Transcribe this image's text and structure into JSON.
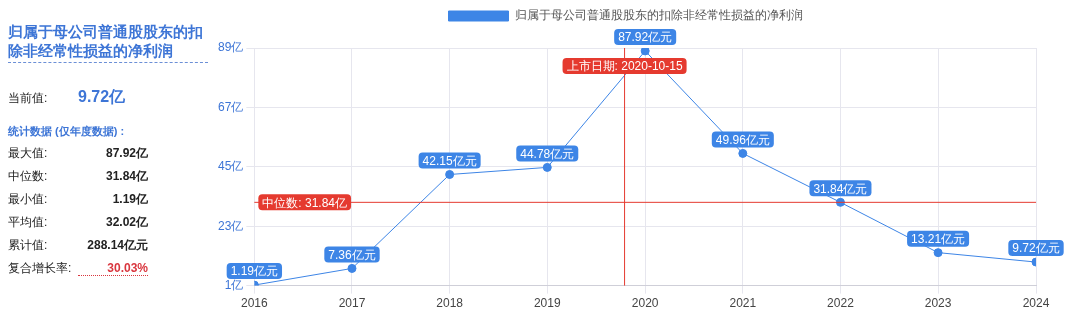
{
  "chart_data": [
    {
      "type": "other",
      "title": "归属于母公司普通股股东的扣除非经常性损益的净利润",
      "subtitle": "统计数据 (仅年度数据) :",
      "annotations": [
        "当前值: 9.72亿",
        "最大值: 87.92亿",
        "中位数: 31.84亿",
        "最小值: 1.19亿",
        "平均值: 32.02亿",
        "累计值: 288.14亿元",
        "复合增长率: 30.03%"
      ]
    },
    {
      "type": "line",
      "x": [
        "2016-12-31",
        "2017-12-31",
        "2018-12-31",
        "2019-12-31",
        "2020-12-31",
        "2021-12-31",
        "2022-12-31",
        "2023-12-31",
        "2024-12-31"
      ],
      "series": [
        {
          "name": "归属于母公司普通股股东的扣除非经常性损益的净利润",
          "color": "#3d85e6",
          "values": [
            1.19,
            7.36,
            42.15,
            44.78,
            87.92,
            49.96,
            31.84,
            13.21,
            9.72
          ],
          "value_labels": [
            "1.19亿元",
            "7.36亿元",
            "42.15亿元",
            "44.78亿元",
            "87.92亿元",
            "49.96亿元",
            "31.84亿元",
            "13.21亿元",
            "9.72亿元"
          ]
        }
      ],
      "xlim": [
        "2016-12-31",
        "2024-12-31"
      ],
      "xticks": [
        {
          "value": "2016-12-31",
          "label": "2016"
        },
        {
          "value": "2017-12-31",
          "label": "2017"
        },
        {
          "value": "2018-12-31",
          "label": "2018"
        },
        {
          "value": "2019-12-31",
          "label": "2019"
        },
        {
          "value": "2020-12-31",
          "label": "2020"
        },
        {
          "value": "2021-12-31",
          "label": "2021"
        },
        {
          "value": "2022-12-31",
          "label": "2022"
        },
        {
          "value": "2023-12-31",
          "label": "2023"
        },
        {
          "value": "2024-12-31",
          "label": "2024"
        }
      ],
      "ylim": [
        1,
        89
      ],
      "yticks": [
        {
          "value": 1,
          "label": "1亿"
        },
        {
          "value": 23,
          "label": "23亿"
        },
        {
          "value": 45,
          "label": "45亿"
        },
        {
          "value": 67,
          "label": "67亿"
        },
        {
          "value": 89,
          "label": "89亿"
        }
      ],
      "ref_lines": [
        {
          "axis": "y",
          "value": 31.84,
          "label": "中位数: 31.84亿",
          "color": "#e53a2f"
        },
        {
          "axis": "x",
          "value": "2020-10-15",
          "label": "上市日期: 2020-10-15",
          "color": "#e53a2f"
        }
      ],
      "grid": true,
      "legend": "top",
      "marker": "circle",
      "line_style": "solid"
    }
  ]
}
